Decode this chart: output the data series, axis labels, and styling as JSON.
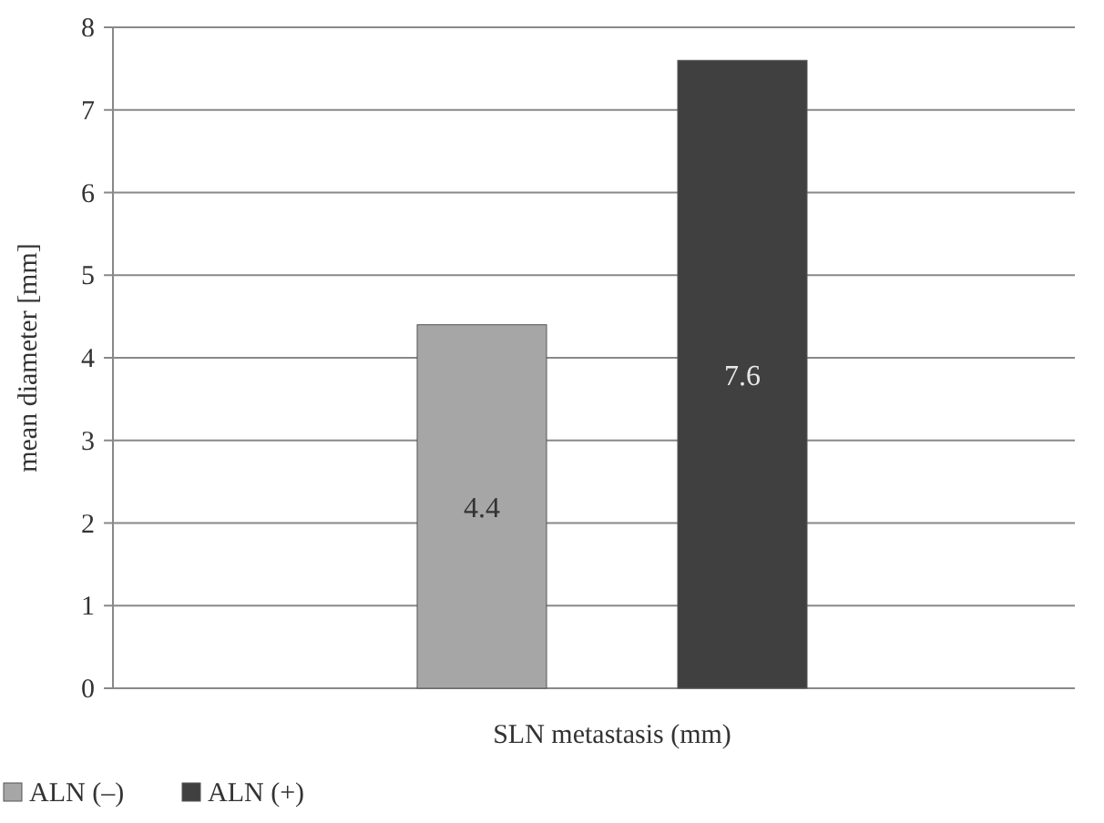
{
  "chart_data": {
    "type": "bar",
    "xlabel": "SLN metastasis (mm)",
    "ylabel": "mean diameter [mm]",
    "categories": [
      null
    ],
    "series": [
      {
        "name": "ALN (–)",
        "color": "#a6a6a6",
        "values": [
          4.4
        ]
      },
      {
        "name": "ALN (+)",
        "color": "#404040",
        "values": [
          7.6
        ]
      }
    ],
    "ylim": [
      0,
      8
    ],
    "yticks": [
      0,
      1,
      2,
      3,
      4,
      5,
      6,
      7,
      8
    ],
    "grid": "y",
    "legend": "bottom left",
    "data_labels": true
  }
}
